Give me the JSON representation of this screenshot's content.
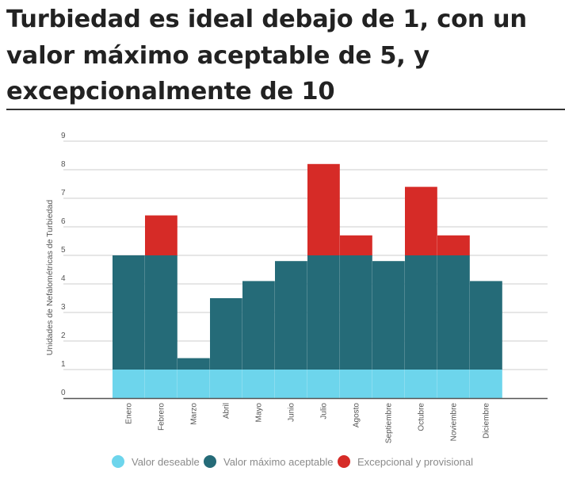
{
  "title": "Turbiedad es ideal debajo de 1, con un valor máximo aceptable de 5, y excepcionalmente de 10",
  "colors": {
    "deseable": "#6dd5ec",
    "maximo": "#256b78",
    "excepcional": "#d62b27",
    "grid": "#cccccc",
    "axis": "#555555"
  },
  "chart_data": {
    "type": "bar",
    "stacked": true,
    "title": "",
    "xlabel": "",
    "ylabel": "Unidades de Nefalométricas de Turbiedad",
    "ylim": [
      0,
      9
    ],
    "yticks": [
      "0",
      "1",
      "2",
      "3",
      "4",
      "5",
      "6",
      "7",
      "8",
      "9"
    ],
    "grid": true,
    "legend_position": "bottom",
    "categories": [
      "Enero",
      "Febrero",
      "Marzo",
      "Abril",
      "Mayo",
      "Junio",
      "Julio",
      "Agosto",
      "Septiembre",
      "Octubre",
      "Noviembre",
      "Diciembre"
    ],
    "series": [
      {
        "name": "Valor deseable",
        "color": "#6dd5ec",
        "values": [
          1,
          1,
          1,
          1,
          1,
          1,
          1,
          1,
          1,
          1,
          1,
          1
        ]
      },
      {
        "name": "Valor máximo aceptable",
        "color": "#256b78",
        "values": [
          4,
          4,
          0.4,
          2.5,
          3.1,
          3.8,
          4,
          4,
          3.8,
          4,
          4,
          3.1
        ]
      },
      {
        "name": "Excepcional y provisional",
        "color": "#d62b27",
        "values": [
          0,
          1.4,
          0,
          0,
          0,
          0,
          3.2,
          0.7,
          0,
          2.4,
          0.7,
          0
        ]
      }
    ]
  }
}
